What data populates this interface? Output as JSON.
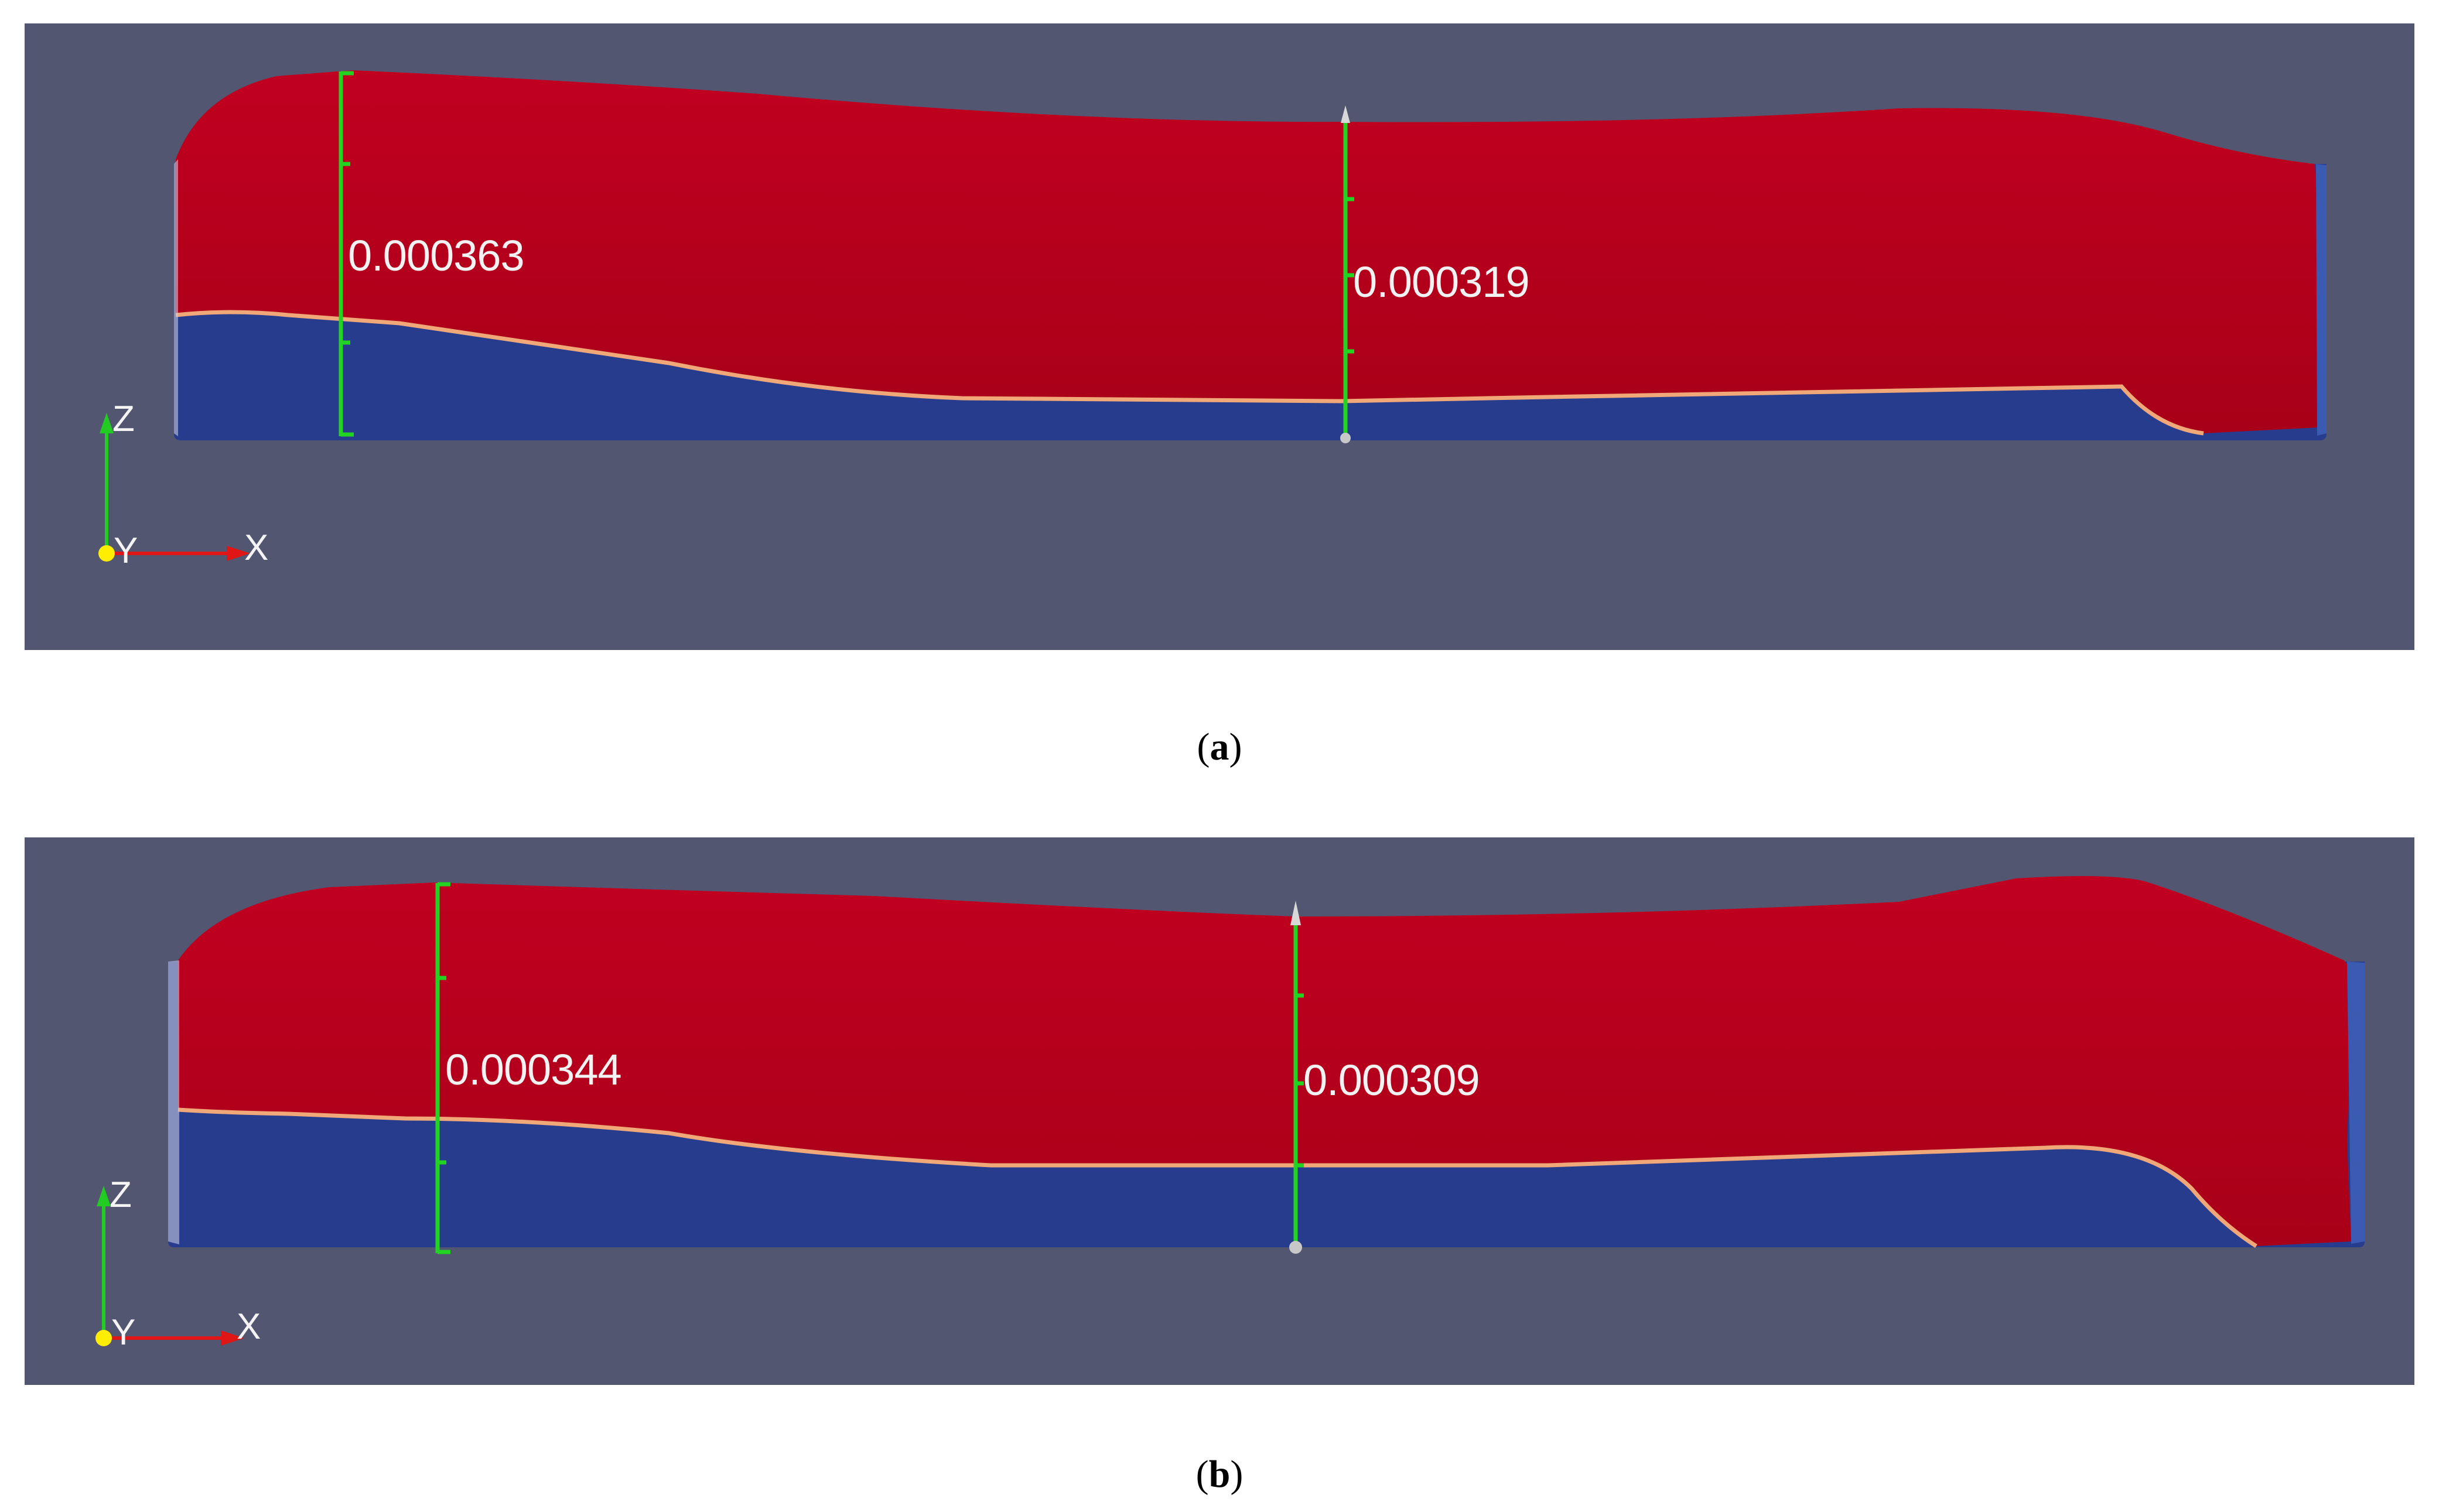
{
  "colors": {
    "background": "#525671",
    "fluid": "#b8001c",
    "substrate": "#283c8e",
    "interface": "#f0a878",
    "measure": "#22d322",
    "axis_x": "#e01515",
    "axis_y": "#ffee00",
    "axis_z": "#22cc22"
  },
  "panel_a": {
    "measurement_left": "0.000363",
    "measurement_center": "0.000319",
    "axes": {
      "x": "X",
      "y": "Y",
      "z": "Z"
    },
    "caption_letter": "a"
  },
  "panel_b": {
    "measurement_left": "0.000344",
    "measurement_center": "0.000309",
    "axes": {
      "x": "X",
      "y": "Y",
      "z": "Z"
    },
    "caption_letter": "b"
  }
}
